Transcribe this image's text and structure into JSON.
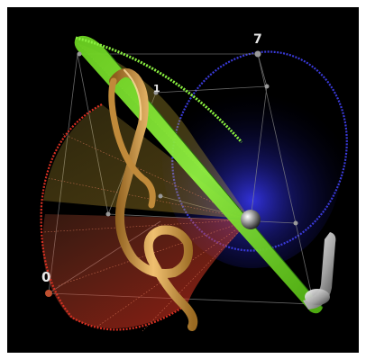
{
  "labels": {
    "seven": "7",
    "one": "1",
    "zero": "0"
  },
  "colors": {
    "background": "#000000",
    "border": "#ffffff",
    "blue": "#3a3ad8",
    "green": "#7fe02a",
    "red": "#d83022",
    "orange": "#e8a23a",
    "gold": "#d9a24a",
    "silver": "#d0d0d0"
  },
  "icons": {
    "clef": "treble-clef-ribbon",
    "sphere": "center-sphere",
    "seat": "silver-chair"
  }
}
